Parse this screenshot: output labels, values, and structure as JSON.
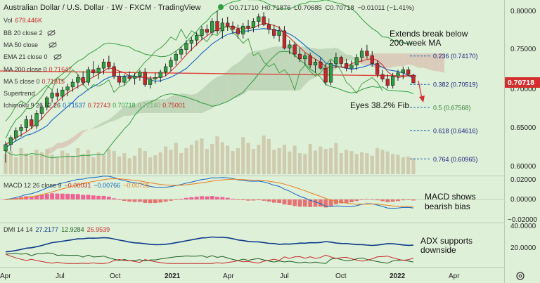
{
  "header": {
    "symbol": "Australian Dollar / U.S. Dollar",
    "interval": "1W",
    "broker": "FXCM",
    "platform": "TradingView",
    "ohlc": {
      "o": "O0.71710",
      "h": "H0.71876",
      "l": "L0.70685",
      "c": "C0.70718",
      "chg": "−0.01011 (−1.41%)"
    }
  },
  "indicators": {
    "vol": {
      "name": "Vol",
      "value": "679.446K"
    },
    "bb": {
      "name": "BB 20 close 2"
    },
    "ma50": {
      "name": "MA 50 close"
    },
    "ema21": {
      "name": "EMA 21 close 0"
    },
    "ma200": {
      "name": "MA 200 close 0",
      "value": "0.71647"
    },
    "ma5": {
      "name": "MA 5 close 0",
      "value": "0.71815"
    },
    "supertrend": {
      "name": "Supertrend"
    },
    "ichimoku": {
      "name": "Ichimoku 9 26 52 26",
      "v1": "0.71537",
      "v2": "0.72743",
      "v3": "0.70718",
      "v4": "0.72140",
      "v5": "0.75001"
    }
  },
  "annotations": {
    "break_line1": "Extends break below",
    "break_line2": "200-week MA",
    "eyes": "Eyes 38.2% Fib",
    "macd_line1": "MACD shows",
    "macd_line2": "bearish bias",
    "adx_line1": "ADX supports",
    "adx_line2": "downside"
  },
  "fib_labels": [
    {
      "ratio": "0.236",
      "price": "(0.74170)"
    },
    {
      "ratio": "0.382",
      "price": "(0.70519)"
    },
    {
      "ratio": "0.5",
      "price": "(0.67568)"
    },
    {
      "ratio": "0.618",
      "price": "(0.64616)"
    },
    {
      "ratio": "0.764",
      "price": "(0.60965)"
    }
  ],
  "current_price_tag": "0.70718",
  "price_axis": [
    "0.80000",
    "0.75000",
    "0.70000",
    "0.65000",
    "0.60000"
  ],
  "macd": {
    "title": "MACD 12 26 close 9",
    "v1": "−0.00031",
    "v2": "−0.00766",
    "v3": "−0.00735",
    "axis": [
      "0.02000",
      "0.00000",
      "−0.02000"
    ]
  },
  "dmi": {
    "title": "DMI 14 14",
    "v1": "27.2177",
    "v2": "12.9284",
    "v3": "26.9539",
    "axis": [
      "40.0000",
      "20.0000"
    ]
  },
  "time_axis": [
    "Apr",
    "Jul",
    "Oct",
    "2021",
    "Apr",
    "Jul",
    "Oct",
    "2022",
    "Apr"
  ],
  "colors": {
    "background": "#dff0d8",
    "bull": "#2e9e3e",
    "bear": "#c62828",
    "ma200": "#e0463c",
    "ma5": "#c62828",
    "ema21": "#1565c0",
    "bb": "#2e9e3e",
    "cloud": "#b5cfb0",
    "cloud_bear": "#d8c0b0",
    "price_tag": "#d32f2f",
    "adx": "#0d3a8a"
  },
  "chart_data": [
    {
      "type": "candlestick",
      "title": "Australian Dollar / U.S. Dollar, 1W, FXCM",
      "x_labels": [
        "Apr",
        "Jul",
        "Oct",
        "2021",
        "Apr",
        "Jul",
        "Oct",
        "2022",
        "Apr"
      ],
      "ylim": [
        0.58,
        0.81
      ],
      "last_close": 0.70718,
      "candles": [
        {
          "o": 0.62,
          "h": 0.632,
          "l": 0.605,
          "c": 0.628
        },
        {
          "o": 0.628,
          "h": 0.64,
          "l": 0.62,
          "c": 0.637
        },
        {
          "o": 0.637,
          "h": 0.65,
          "l": 0.632,
          "c": 0.646
        },
        {
          "o": 0.646,
          "h": 0.654,
          "l": 0.638,
          "c": 0.65
        },
        {
          "o": 0.65,
          "h": 0.665,
          "l": 0.645,
          "c": 0.66
        },
        {
          "o": 0.66,
          "h": 0.666,
          "l": 0.648,
          "c": 0.652
        },
        {
          "o": 0.652,
          "h": 0.672,
          "l": 0.648,
          "c": 0.668
        },
        {
          "o": 0.668,
          "h": 0.68,
          "l": 0.66,
          "c": 0.676
        },
        {
          "o": 0.676,
          "h": 0.69,
          "l": 0.672,
          "c": 0.688
        },
        {
          "o": 0.688,
          "h": 0.698,
          "l": 0.682,
          "c": 0.694
        },
        {
          "o": 0.694,
          "h": 0.7,
          "l": 0.685,
          "c": 0.69
        },
        {
          "o": 0.69,
          "h": 0.702,
          "l": 0.684,
          "c": 0.698
        },
        {
          "o": 0.698,
          "h": 0.706,
          "l": 0.69,
          "c": 0.702
        },
        {
          "o": 0.702,
          "h": 0.712,
          "l": 0.696,
          "c": 0.708
        },
        {
          "o": 0.708,
          "h": 0.718,
          "l": 0.7,
          "c": 0.714
        },
        {
          "o": 0.714,
          "h": 0.722,
          "l": 0.704,
          "c": 0.708
        },
        {
          "o": 0.708,
          "h": 0.728,
          "l": 0.704,
          "c": 0.724
        },
        {
          "o": 0.724,
          "h": 0.735,
          "l": 0.715,
          "c": 0.72
        },
        {
          "o": 0.72,
          "h": 0.73,
          "l": 0.712,
          "c": 0.726
        },
        {
          "o": 0.726,
          "h": 0.738,
          "l": 0.718,
          "c": 0.734
        },
        {
          "o": 0.734,
          "h": 0.742,
          "l": 0.724,
          "c": 0.728
        },
        {
          "o": 0.728,
          "h": 0.733,
          "l": 0.712,
          "c": 0.716
        },
        {
          "o": 0.716,
          "h": 0.722,
          "l": 0.704,
          "c": 0.708
        },
        {
          "o": 0.708,
          "h": 0.718,
          "l": 0.704,
          "c": 0.715
        },
        {
          "o": 0.715,
          "h": 0.722,
          "l": 0.71,
          "c": 0.713
        },
        {
          "o": 0.713,
          "h": 0.72,
          "l": 0.705,
          "c": 0.716
        },
        {
          "o": 0.716,
          "h": 0.724,
          "l": 0.71,
          "c": 0.721
        },
        {
          "o": 0.721,
          "h": 0.726,
          "l": 0.702,
          "c": 0.705
        },
        {
          "o": 0.705,
          "h": 0.716,
          "l": 0.7,
          "c": 0.712
        },
        {
          "o": 0.712,
          "h": 0.72,
          "l": 0.706,
          "c": 0.714
        },
        {
          "o": 0.714,
          "h": 0.724,
          "l": 0.708,
          "c": 0.721
        },
        {
          "o": 0.721,
          "h": 0.732,
          "l": 0.716,
          "c": 0.728
        },
        {
          "o": 0.728,
          "h": 0.74,
          "l": 0.722,
          "c": 0.736
        },
        {
          "o": 0.736,
          "h": 0.748,
          "l": 0.73,
          "c": 0.744
        },
        {
          "o": 0.744,
          "h": 0.754,
          "l": 0.738,
          "c": 0.75
        },
        {
          "o": 0.75,
          "h": 0.762,
          "l": 0.744,
          "c": 0.758
        },
        {
          "o": 0.758,
          "h": 0.766,
          "l": 0.748,
          "c": 0.762
        },
        {
          "o": 0.762,
          "h": 0.772,
          "l": 0.755,
          "c": 0.768
        },
        {
          "o": 0.768,
          "h": 0.78,
          "l": 0.762,
          "c": 0.776
        },
        {
          "o": 0.776,
          "h": 0.782,
          "l": 0.768,
          "c": 0.772
        },
        {
          "o": 0.772,
          "h": 0.79,
          "l": 0.768,
          "c": 0.786
        },
        {
          "o": 0.786,
          "h": 0.8,
          "l": 0.77,
          "c": 0.774
        },
        {
          "o": 0.774,
          "h": 0.79,
          "l": 0.764,
          "c": 0.784
        },
        {
          "o": 0.784,
          "h": 0.792,
          "l": 0.774,
          "c": 0.78
        },
        {
          "o": 0.78,
          "h": 0.786,
          "l": 0.77,
          "c": 0.776
        },
        {
          "o": 0.776,
          "h": 0.782,
          "l": 0.764,
          "c": 0.77
        },
        {
          "o": 0.77,
          "h": 0.784,
          "l": 0.764,
          "c": 0.78
        },
        {
          "o": 0.78,
          "h": 0.788,
          "l": 0.772,
          "c": 0.778
        },
        {
          "o": 0.778,
          "h": 0.79,
          "l": 0.772,
          "c": 0.786
        },
        {
          "o": 0.786,
          "h": 0.796,
          "l": 0.778,
          "c": 0.792
        },
        {
          "o": 0.792,
          "h": 0.798,
          "l": 0.78,
          "c": 0.782
        },
        {
          "o": 0.782,
          "h": 0.79,
          "l": 0.77,
          "c": 0.776
        },
        {
          "o": 0.776,
          "h": 0.782,
          "l": 0.764,
          "c": 0.768
        },
        {
          "o": 0.768,
          "h": 0.78,
          "l": 0.76,
          "c": 0.774
        },
        {
          "o": 0.774,
          "h": 0.78,
          "l": 0.75,
          "c": 0.752
        },
        {
          "o": 0.752,
          "h": 0.762,
          "l": 0.744,
          "c": 0.756
        },
        {
          "o": 0.756,
          "h": 0.76,
          "l": 0.74,
          "c": 0.744
        },
        {
          "o": 0.744,
          "h": 0.752,
          "l": 0.734,
          "c": 0.738
        },
        {
          "o": 0.738,
          "h": 0.746,
          "l": 0.73,
          "c": 0.742
        },
        {
          "o": 0.742,
          "h": 0.746,
          "l": 0.726,
          "c": 0.73
        },
        {
          "o": 0.73,
          "h": 0.738,
          "l": 0.72,
          "c": 0.734
        },
        {
          "o": 0.734,
          "h": 0.74,
          "l": 0.724,
          "c": 0.726
        },
        {
          "o": 0.726,
          "h": 0.732,
          "l": 0.704,
          "c": 0.708
        },
        {
          "o": 0.708,
          "h": 0.736,
          "l": 0.704,
          "c": 0.732
        },
        {
          "o": 0.732,
          "h": 0.746,
          "l": 0.726,
          "c": 0.74
        },
        {
          "o": 0.74,
          "h": 0.742,
          "l": 0.728,
          "c": 0.732
        },
        {
          "o": 0.732,
          "h": 0.738,
          "l": 0.722,
          "c": 0.726
        },
        {
          "o": 0.726,
          "h": 0.736,
          "l": 0.72,
          "c": 0.73
        },
        {
          "o": 0.73,
          "h": 0.744,
          "l": 0.724,
          "c": 0.74
        },
        {
          "o": 0.74,
          "h": 0.752,
          "l": 0.734,
          "c": 0.748
        },
        {
          "o": 0.748,
          "h": 0.756,
          "l": 0.738,
          "c": 0.742
        },
        {
          "o": 0.742,
          "h": 0.748,
          "l": 0.728,
          "c": 0.732
        },
        {
          "o": 0.732,
          "h": 0.736,
          "l": 0.714,
          "c": 0.718
        },
        {
          "o": 0.718,
          "h": 0.724,
          "l": 0.708,
          "c": 0.712
        },
        {
          "o": 0.712,
          "h": 0.718,
          "l": 0.7,
          "c": 0.704
        },
        {
          "o": 0.704,
          "h": 0.72,
          "l": 0.7,
          "c": 0.716
        },
        {
          "o": 0.716,
          "h": 0.724,
          "l": 0.71,
          "c": 0.72
        },
        {
          "o": 0.72,
          "h": 0.728,
          "l": 0.712,
          "c": 0.724
        },
        {
          "o": 0.724,
          "h": 0.728,
          "l": 0.716,
          "c": 0.718
        },
        {
          "o": 0.7171,
          "h": 0.71876,
          "l": 0.70685,
          "c": 0.70718
        }
      ],
      "volume": [
        48,
        55,
        40,
        62,
        50,
        45,
        58,
        52,
        60,
        47,
        42,
        56,
        50,
        44,
        62,
        48,
        58,
        40,
        52,
        46,
        60,
        55,
        42,
        50,
        38,
        44,
        62,
        55,
        40,
        45,
        52,
        66,
        58,
        74,
        50,
        62,
        70,
        80,
        85,
        60,
        72,
        90,
        76,
        68,
        55,
        62,
        88,
        74,
        60,
        70,
        92,
        84,
        58,
        62,
        70,
        54,
        68,
        50,
        48,
        72,
        56,
        66,
        60,
        62,
        74,
        50,
        58,
        55,
        48,
        52,
        50,
        44,
        62,
        58,
        54,
        48,
        46,
        40,
        42,
        38
      ]
    },
    {
      "type": "line",
      "title": "MACD 12 26 close 9",
      "ylim": [
        -0.02,
        0.02
      ],
      "series": [
        {
          "name": "MACD",
          "last": -0.00766
        },
        {
          "name": "Signal",
          "last": -0.00735
        },
        {
          "name": "Histogram",
          "last": -0.00031
        }
      ]
    },
    {
      "type": "line",
      "title": "DMI 14 14",
      "ylim": [
        10,
        40
      ],
      "series": [
        {
          "name": "+DI",
          "last": 12.9284
        },
        {
          "name": "−DI",
          "last": 26.9539
        },
        {
          "name": "ADX",
          "last": 27.2177
        }
      ]
    }
  ]
}
